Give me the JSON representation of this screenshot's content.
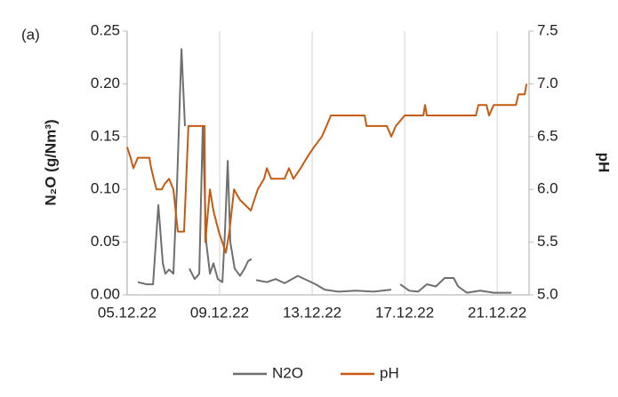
{
  "chart_data": {
    "type": "line",
    "annotation": "(a)",
    "ylabel": "N₂O (g/Nm³)",
    "y2label": "pH",
    "xlim": [
      5,
      22.38
    ],
    "xticks": [
      {
        "value": 5,
        "label": "05.12.22"
      },
      {
        "value": 9,
        "label": "09.12.22"
      },
      {
        "value": 13,
        "label": "13.12.22"
      },
      {
        "value": 17,
        "label": "17.12.22"
      },
      {
        "value": 21,
        "label": "21.12.22"
      }
    ],
    "ylim": [
      0,
      0.25
    ],
    "yticks": [
      {
        "value": 0,
        "label": "0.00"
      },
      0.05,
      {
        "value": 0.1,
        "label": "0.10"
      },
      0.15,
      {
        "value": 0.2,
        "label": "0.20"
      },
      0.25
    ],
    "y2lim": [
      5,
      7.5
    ],
    "y2ticks": [
      {
        "value": 5,
        "label": "5.0"
      },
      5.5,
      {
        "value": 6,
        "label": "6.0"
      },
      6.5,
      {
        "value": 7,
        "label": "7.0"
      },
      7.5
    ],
    "grid": "x",
    "legend": "bottom",
    "series": [
      {
        "name": "N2O",
        "color": "#6f6f6f",
        "x": [
          5.46,
          5.85,
          6.12,
          6.35,
          6.54,
          6.65,
          6.81,
          7.0,
          7.15,
          7.35,
          7.5,
          null,
          7.69,
          7.92,
          8.12,
          8.27,
          8.42,
          8.58,
          8.73,
          8.92,
          9.12,
          9.23,
          9.35,
          9.46,
          9.65,
          9.88,
          10.08,
          10.23,
          10.38,
          null,
          10.58,
          11.04,
          11.42,
          11.81,
          12.38,
          12.77,
          13.15,
          13.54,
          14.12,
          14.88,
          15.65,
          16.42,
          null,
          16.81,
          17.19,
          17.58,
          17.96,
          18.35,
          18.73,
          19.12,
          19.31,
          19.69,
          20.27,
          20.85,
          21.62
        ],
        "values": [
          0.012,
          0.01,
          0.01,
          0.085,
          0.03,
          0.02,
          0.024,
          0.02,
          0.1,
          0.233,
          0.16,
          null,
          0.025,
          0.015,
          0.02,
          0.16,
          0.05,
          0.02,
          0.03,
          0.015,
          0.012,
          0.06,
          0.127,
          0.05,
          0.025,
          0.018,
          0.025,
          0.032,
          0.034,
          null,
          0.014,
          0.012,
          0.015,
          0.011,
          0.018,
          0.014,
          0.01,
          0.005,
          0.003,
          0.004,
          0.003,
          0.005,
          null,
          0.01,
          0.004,
          0.003,
          0.01,
          0.008,
          0.016,
          0.016,
          0.008,
          0.002,
          0.004,
          0.002,
          0.002
        ]
      },
      {
        "name": "pH",
        "color": "#c55a11",
        "axis": "y2",
        "x": [
          5.0,
          5.15,
          5.27,
          5.46,
          5.96,
          6.04,
          6.15,
          6.27,
          6.5,
          6.62,
          6.81,
          7.0,
          7.19,
          7.46,
          7.65,
          8.35,
          8.38,
          8.58,
          8.73,
          8.96,
          9.27,
          9.42,
          9.62,
          9.88,
          10.35,
          10.65,
          10.92,
          11.04,
          11.23,
          11.81,
          12.0,
          12.19,
          12.5,
          12.77,
          13.08,
          13.42,
          13.62,
          13.81,
          15.27,
          15.35,
          16.23,
          16.42,
          16.62,
          17.0,
          17.81,
          17.88,
          17.96,
          20.08,
          20.19,
          20.54,
          20.65,
          20.85,
          21.81,
          21.92,
          22.19,
          22.27
        ],
        "values": [
          6.4,
          6.3,
          6.2,
          6.3,
          6.3,
          6.2,
          6.1,
          6.0,
          6.0,
          6.05,
          6.1,
          6.0,
          5.6,
          5.6,
          6.6,
          6.6,
          5.5,
          6.0,
          5.8,
          5.6,
          5.4,
          5.6,
          6.0,
          5.9,
          5.8,
          6.0,
          6.1,
          6.2,
          6.1,
          6.1,
          6.2,
          6.1,
          6.2,
          6.3,
          6.4,
          6.5,
          6.6,
          6.7,
          6.7,
          6.6,
          6.6,
          6.5,
          6.6,
          6.7,
          6.7,
          6.8,
          6.7,
          6.7,
          6.8,
          6.8,
          6.7,
          6.8,
          6.8,
          6.9,
          6.9,
          7.0
        ]
      }
    ]
  }
}
